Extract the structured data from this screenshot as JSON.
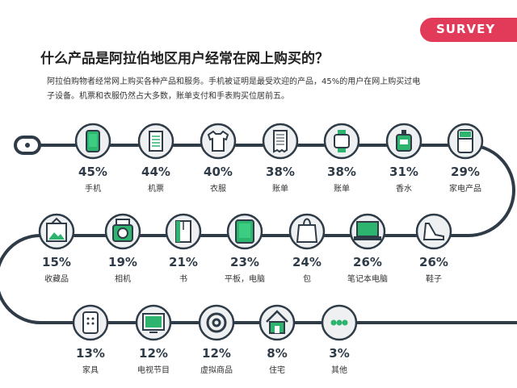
{
  "header": {
    "brand": "SURVEY",
    "title": "什么产品是阿拉伯地区用户经常在网上购买的？",
    "description": "阿拉伯购物者经常网上购买各种产品和服务。手机被证明是最受欢迎的产品，45%的用户在网上购买过电子设备。机票和衣服仍然占大多数，账单支付和手表购买位居前五。"
  },
  "colors": {
    "accent": "#2db46e",
    "track": "#2f3c48",
    "brand": "#e23b5a",
    "icon_bg": "#eef0f2"
  },
  "chart_data": {
    "type": "bar",
    "title": "",
    "unit": "%",
    "categories": [
      "手机",
      "机票",
      "衣服",
      "账单",
      "账单",
      "香水",
      "家电产品",
      "收藏品",
      "相机",
      "书",
      "平板，电脑",
      "包",
      "笔记本电脑",
      "鞋子",
      "家具",
      "电视节目",
      "虚拟商品",
      "住宅",
      "其他"
    ],
    "values": [
      45,
      44,
      40,
      38,
      38,
      31,
      29,
      15,
      19,
      21,
      23,
      24,
      26,
      26,
      13,
      12,
      12,
      8,
      3
    ],
    "labels": [
      "45%",
      "44%",
      "40%",
      "38%",
      "38%",
      "31%",
      "29%",
      "15%",
      "19%",
      "21%",
      "23%",
      "24%",
      "26%",
      "26%",
      "13%",
      "12%",
      "12%",
      "8%",
      "3%"
    ],
    "icons": [
      "mobile-phone-icon",
      "ticket-icon",
      "shirt-icon",
      "bill-icon",
      "watch-icon",
      "perfume-icon",
      "fridge-icon",
      "picture-icon",
      "camera-icon",
      "book-icon",
      "tablet-icon",
      "bag-icon",
      "laptop-icon",
      "shoe-icon",
      "furniture-icon",
      "tv-icon",
      "at-sign-icon",
      "house-icon",
      "more-icon"
    ]
  }
}
